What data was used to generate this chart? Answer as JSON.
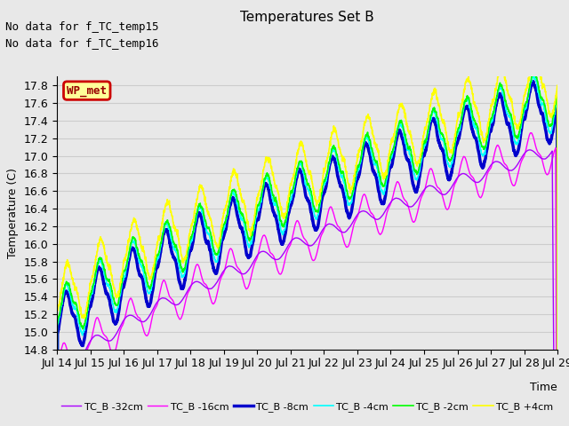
{
  "title": "Temperatures Set B",
  "xlabel": "Time",
  "ylabel": "Temperature (C)",
  "ylim": [
    14.8,
    17.9
  ],
  "yticks": [
    14.8,
    15.0,
    15.2,
    15.4,
    15.6,
    15.8,
    16.0,
    16.2,
    16.4,
    16.6,
    16.8,
    17.0,
    17.2,
    17.4,
    17.6,
    17.8
  ],
  "legend_labels": [
    "TC_B -32cm",
    "TC_B -16cm",
    "TC_B -8cm",
    "TC_B -4cm",
    "TC_B -2cm",
    "TC_B +4cm"
  ],
  "line_colors": [
    "#aa00ff",
    "#ff00ff",
    "#0000cc",
    "#00ffff",
    "#00ff00",
    "#ffff00"
  ],
  "line_widths": [
    1.0,
    1.0,
    2.5,
    1.2,
    1.2,
    1.2
  ],
  "text_no_data1": "No data for f_TC_temp15",
  "text_no_data2": "No data for f_TC_temp16",
  "wp_met_label": "WP_met",
  "wp_met_bg": "#ffff99",
  "wp_met_border": "#cc0000",
  "grid_color": "#cccccc",
  "bg_color": "#e8e8e8",
  "n_points": 3600,
  "start_day": 14,
  "end_day": 29,
  "xtick_days": [
    14,
    15,
    16,
    17,
    18,
    19,
    20,
    21,
    22,
    23,
    24,
    25,
    26,
    27,
    28,
    29
  ],
  "font_size": 9,
  "title_font_size": 11
}
